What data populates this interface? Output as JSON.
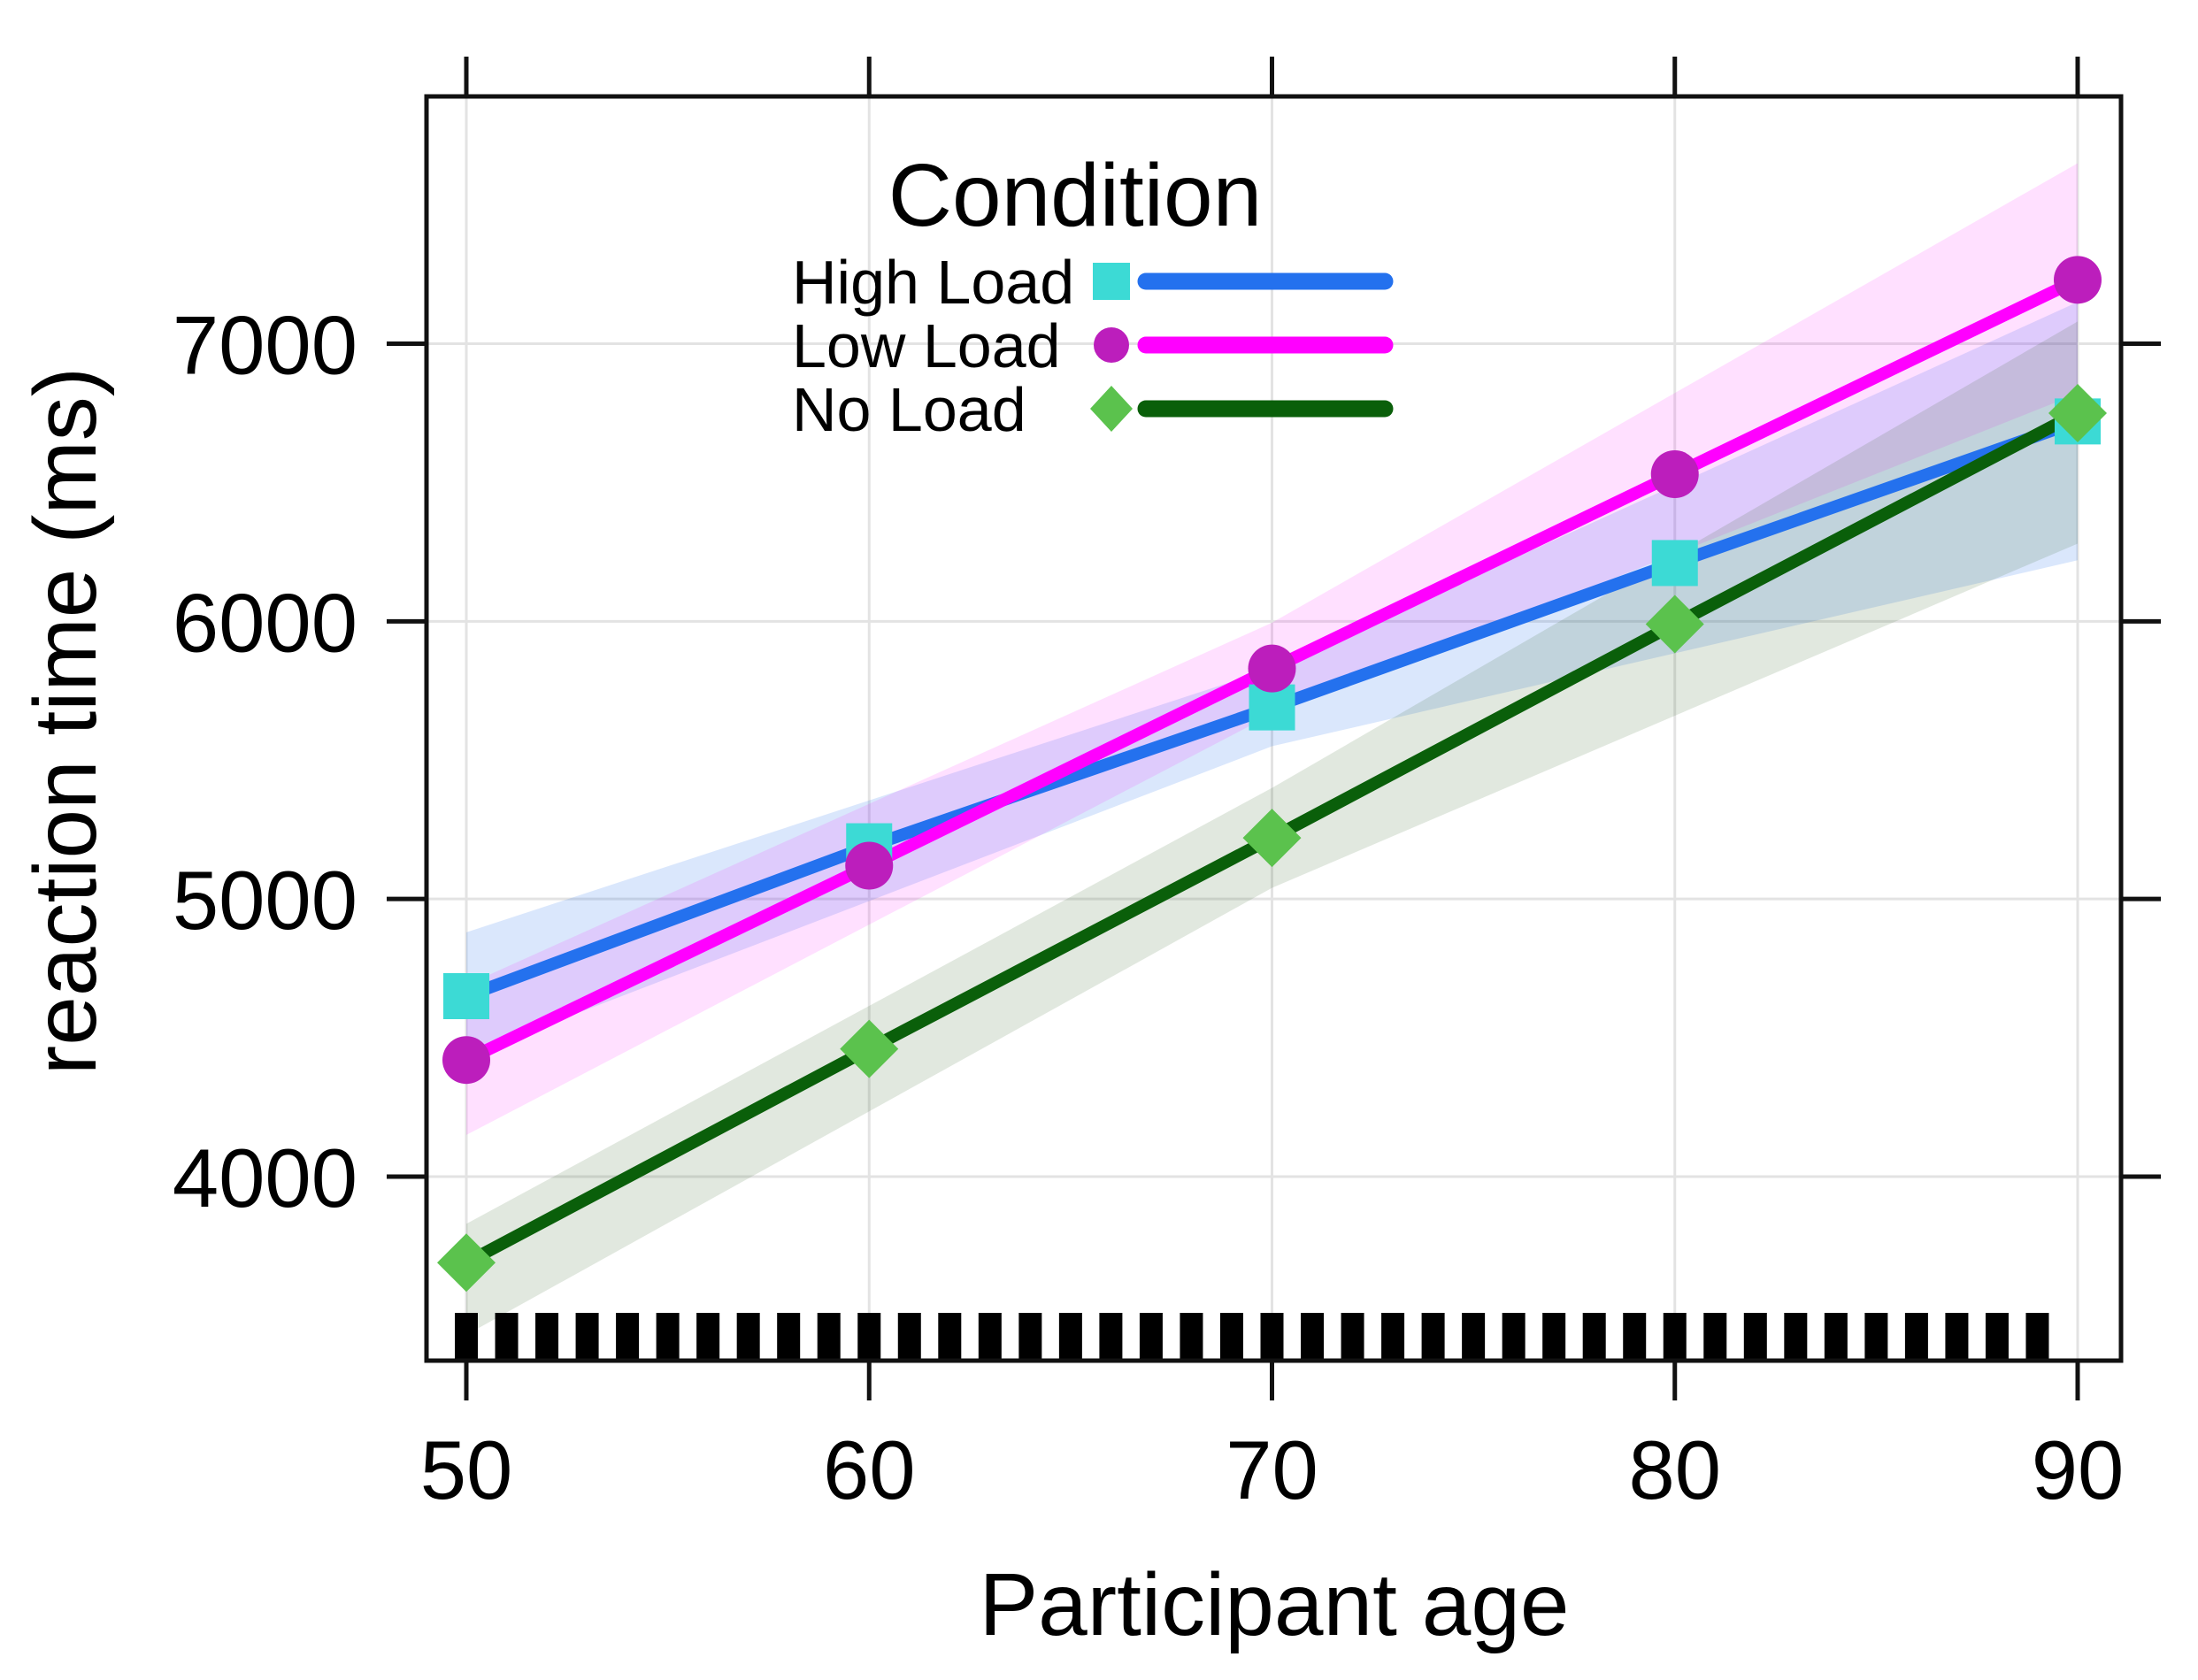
{
  "figure": {
    "background": "#FFFFFF",
    "grid_color": "#E3E3E3",
    "axis_color": "#111111",
    "x_axis": {
      "title": "Participant age",
      "tick_labels": [
        "50",
        "60",
        "70",
        "80",
        "90"
      ],
      "ticks": [
        50,
        60,
        70,
        80,
        90
      ]
    },
    "y_axis": {
      "title": "reaction time (ms)",
      "tick_labels": [
        "4000",
        "5000",
        "6000",
        "7000"
      ],
      "ticks": [
        4000,
        5000,
        6000,
        7000
      ]
    },
    "legend": {
      "title": "Condition",
      "position": "top-center-inside",
      "items": [
        {
          "label": "High Load",
          "marker": "square",
          "marker_color": "#3CDAD5",
          "line_color": "#2471EE"
        },
        {
          "label": "Low Load",
          "marker": "circle",
          "marker_color": "#BC1EBC",
          "line_color": "#FF00FF"
        },
        {
          "label": "No Load",
          "marker": "diamond",
          "marker_color": "#5BC24D",
          "line_color": "#0A5F0A"
        }
      ]
    }
  },
  "chart_data": {
    "type": "line",
    "title": "",
    "xlabel": "Participant age",
    "ylabel": "reaction time (ms)",
    "x": [
      50,
      60,
      70,
      80,
      90
    ],
    "xlim": [
      49,
      91
    ],
    "ylim": [
      3340,
      7890
    ],
    "grid": "on",
    "legend_position": "top-center-inside",
    "series": [
      {
        "name": "High Load",
        "marker": "square",
        "marker_color": "#3CDAD5",
        "line_color": "#2471EE",
        "values": [
          4650,
          5190,
          5690,
          6210,
          6720
        ],
        "ci_band": {
          "x": [
            50,
            70,
            90
          ],
          "upper": [
            4880,
            5830,
            7150
          ],
          "lower": [
            4435,
            5550,
            6220
          ],
          "fill": "rgba(36,113,238,0.17)"
        }
      },
      {
        "name": "Low Load",
        "marker": "circle",
        "marker_color": "#BC1EBC",
        "line_color": "#FF00FF",
        "values": [
          4420,
          5120,
          5830,
          6530,
          7230
        ],
        "ci_band": {
          "x": [
            50,
            70,
            90
          ],
          "upper": [
            4690,
            5995,
            7650
          ],
          "lower": [
            4150,
            5665,
            6820
          ],
          "fill": "rgba(255,0,255,0.12)"
        }
      },
      {
        "name": "No Load",
        "marker": "diamond",
        "marker_color": "#5BC24D",
        "line_color": "#0A5F0A",
        "values": [
          3690,
          4460,
          5220,
          5990,
          6750
        ],
        "ci_band": {
          "x": [
            50,
            70,
            90
          ],
          "upper": [
            3830,
            5400,
            7080
          ],
          "lower": [
            3430,
            5040,
            6280
          ],
          "fill": "rgba(55,100,40,0.15)"
        }
      }
    ],
    "rug": {
      "variable": "participant ages",
      "from": 50,
      "to": 89,
      "step": 1,
      "count": 40
    }
  }
}
